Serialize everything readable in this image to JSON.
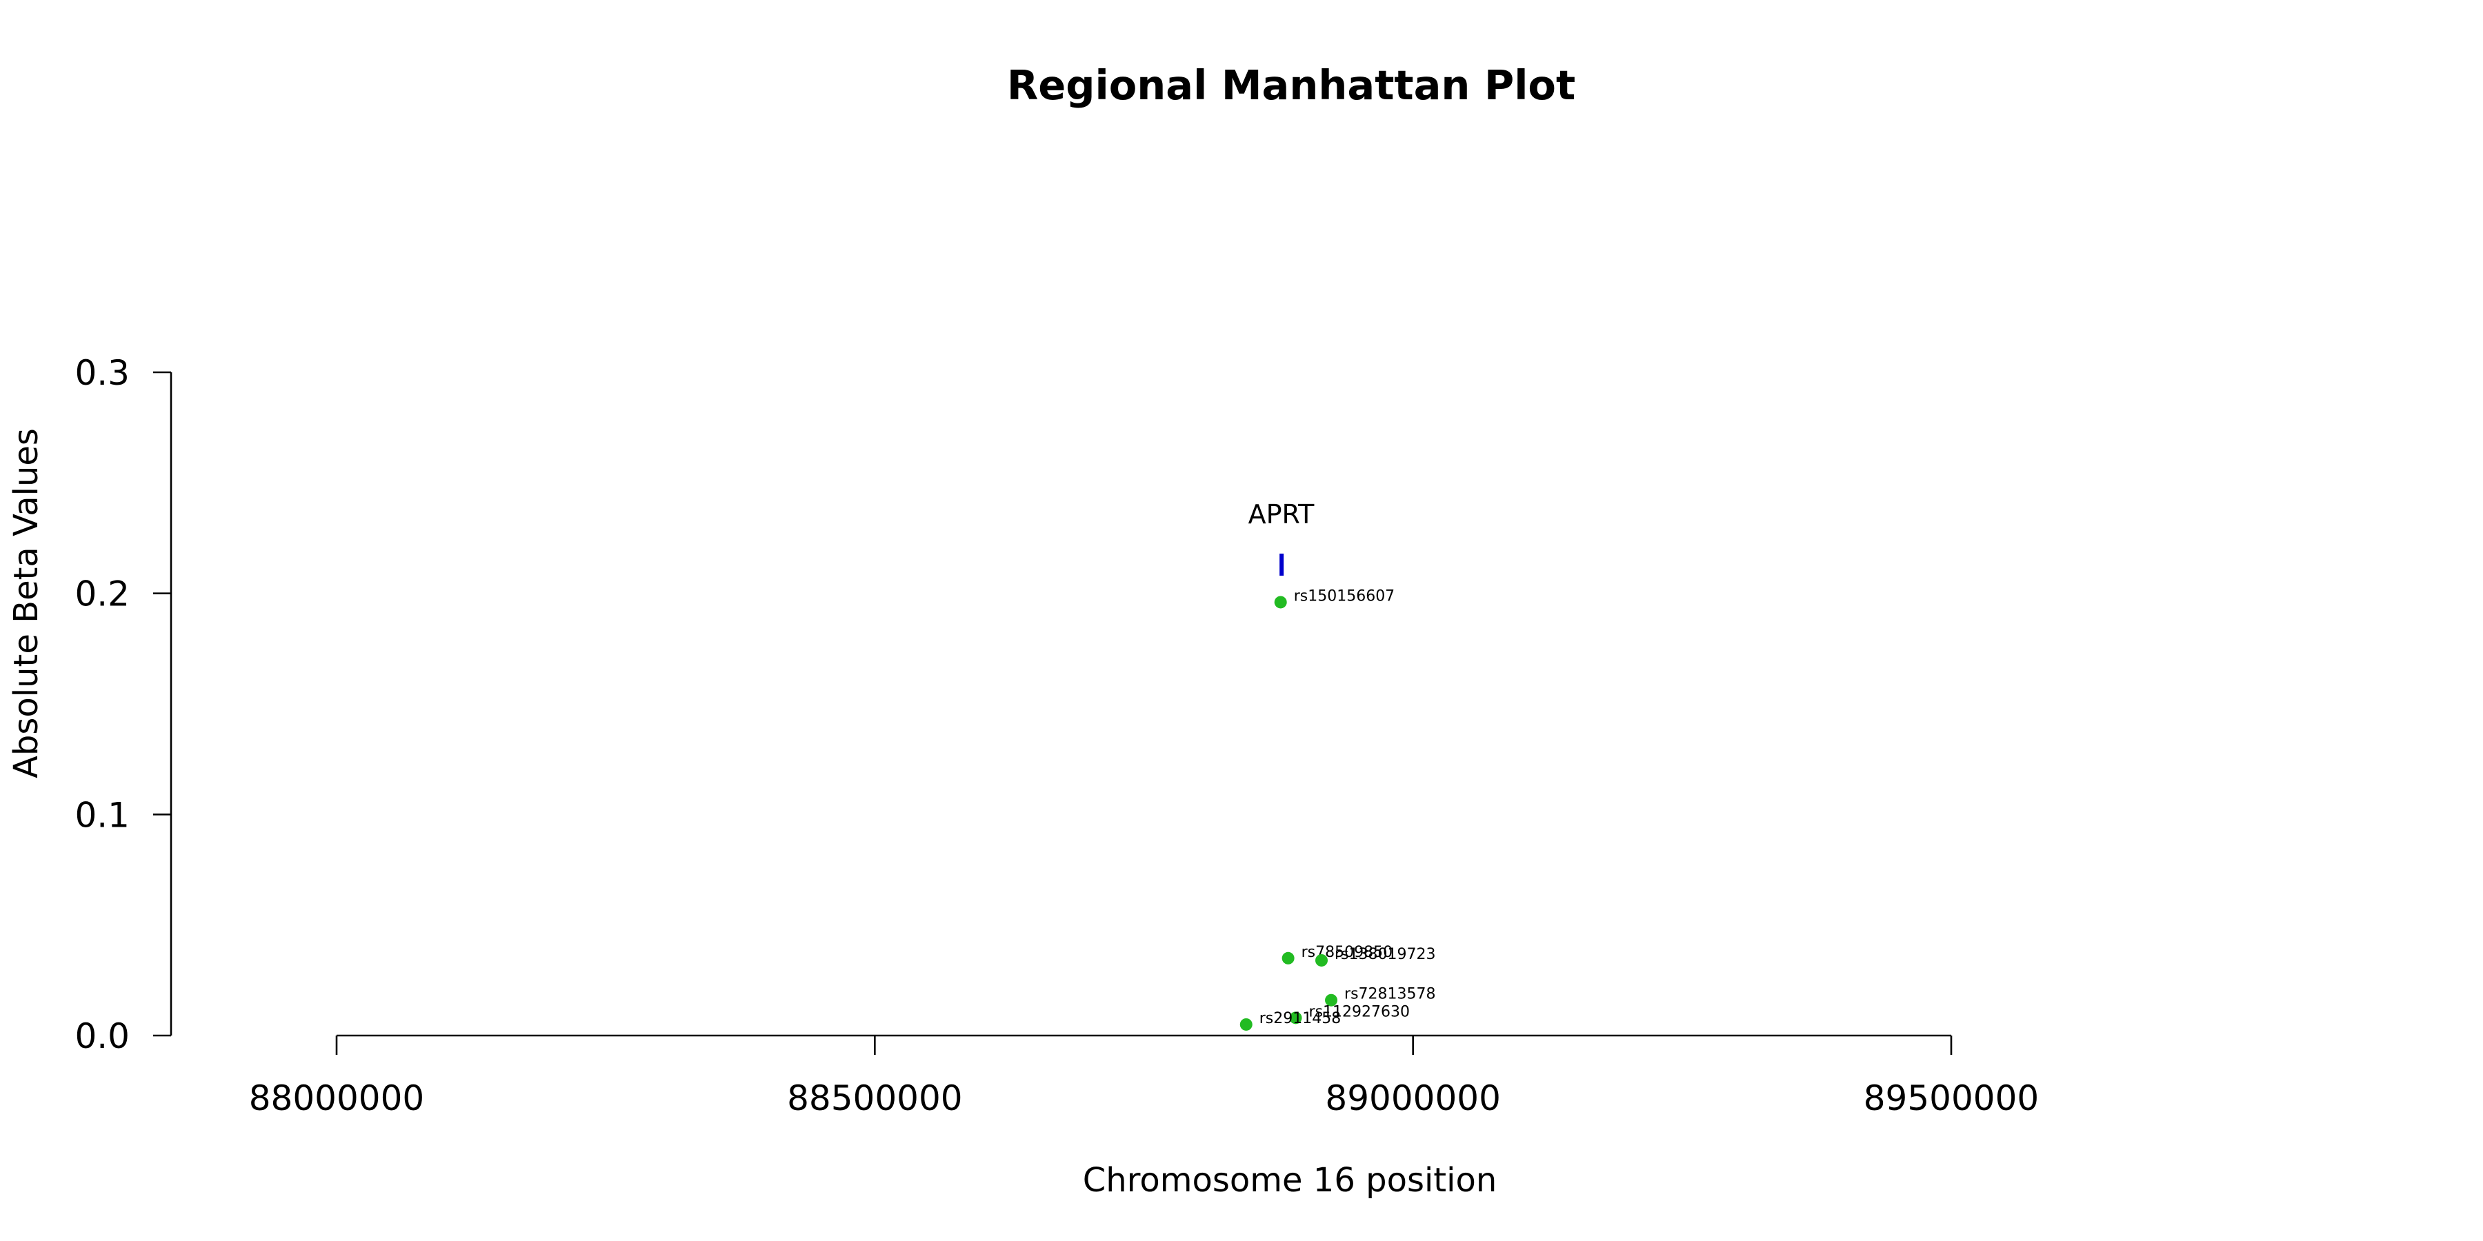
{
  "chart_data": {
    "type": "scatter",
    "title": "Regional Manhattan Plot",
    "xlabel": "Chromosome 16 position",
    "ylabel": "Absolute Beta Values",
    "xlim": [
      88000000,
      89500000
    ],
    "ylim": [
      0,
      0.3
    ],
    "x_ticks": [
      "88000000",
      "88500000",
      "89000000",
      "89500000"
    ],
    "y_ticks": [
      "0.0",
      "0.1",
      "0.2",
      "0.3"
    ],
    "point_color": "#22bb22",
    "gene_color": "#0000cc",
    "points": [
      {
        "x": 88877000,
        "y": 0.196,
        "label": "rs150156607"
      },
      {
        "x": 88884000,
        "y": 0.035,
        "label": "rs78509850"
      },
      {
        "x": 88915000,
        "y": 0.034,
        "label": "rs138019723"
      },
      {
        "x": 88924000,
        "y": 0.016,
        "label": "rs72813578"
      },
      {
        "x": 88891000,
        "y": 0.008,
        "label": "rs112927630"
      },
      {
        "x": 88845000,
        "y": 0.005,
        "label": "rs2911458"
      }
    ],
    "genes": [
      {
        "name": "APRT",
        "start": 88876000,
        "end": 88879000,
        "y": 0.213
      }
    ]
  }
}
